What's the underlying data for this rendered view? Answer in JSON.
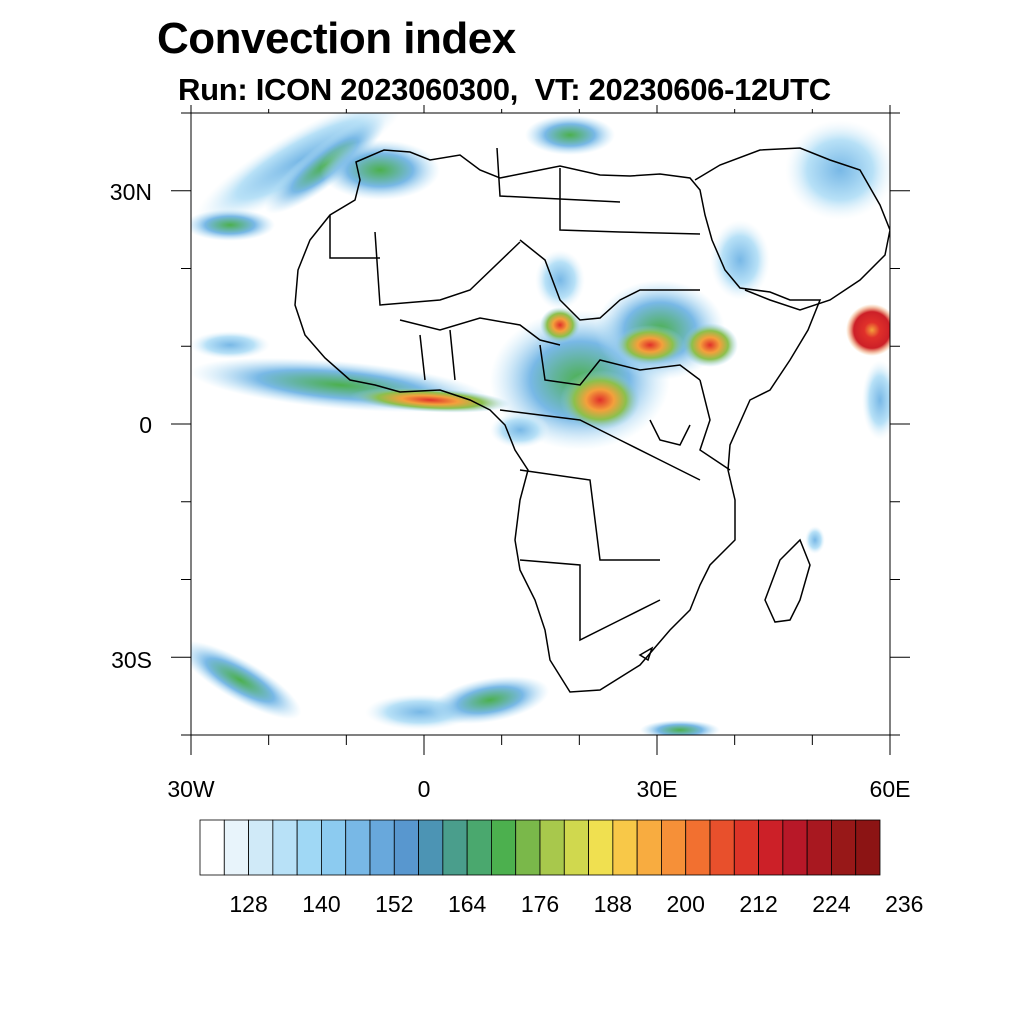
{
  "header": {
    "title": "Convection index",
    "subtitle": "Run: ICON 2023060300,  VT: 20230606-12UTC"
  },
  "axes": {
    "lat_labels": [
      "30N",
      "0",
      "30S"
    ],
    "lon_labels": [
      "30W",
      "0",
      "30E",
      "60E"
    ]
  },
  "colorbar": {
    "colors": [
      "#ffffff",
      "#e8f4fb",
      "#d0eaf8",
      "#b8e1f7",
      "#a0d8f5",
      "#8ccbf0",
      "#78b8e6",
      "#68a8dc",
      "#5897cf",
      "#4c94b4",
      "#4a9e8c",
      "#4aa86e",
      "#4cb04e",
      "#7ab84a",
      "#a8c84c",
      "#d0d84e",
      "#f0e050",
      "#f8c848",
      "#f8ac40",
      "#f69038",
      "#f27030",
      "#e8502c",
      "#dc3428",
      "#cc2028",
      "#b81828",
      "#a81820",
      "#981818",
      "#8c1414"
    ],
    "tick_labels": [
      "128",
      "140",
      "152",
      "164",
      "176",
      "188",
      "200",
      "212",
      "224",
      "236"
    ]
  }
}
